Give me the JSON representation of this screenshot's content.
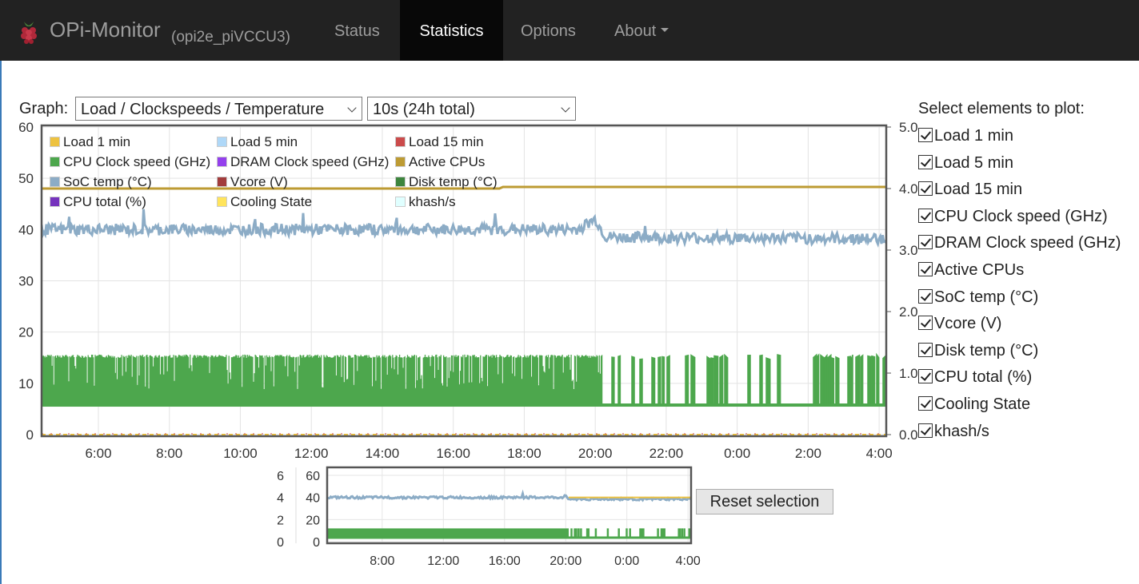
{
  "navbar": {
    "brand_title": "OPi-Monitor",
    "brand_subtitle": "(opi2e_piVCCU3)",
    "items": [
      {
        "label": "Status",
        "active": false
      },
      {
        "label": "Statistics",
        "active": true
      },
      {
        "label": "Options",
        "active": false
      },
      {
        "label": "About",
        "active": false,
        "has_dropdown": true
      }
    ]
  },
  "graph_controls": {
    "label": "Graph:",
    "graph_select": "Load / Clockspeeds / Temperature",
    "interval_select": "10s (24h total)"
  },
  "legend": [
    {
      "label": "Load 1 min",
      "color": "#edc240"
    },
    {
      "label": "Load 5 min",
      "color": "#afd8f8"
    },
    {
      "label": "Load 15 min",
      "color": "#cb4b4b"
    },
    {
      "label": "CPU Clock speed (GHz)",
      "color": "#4da74d"
    },
    {
      "label": "DRAM Clock speed (GHz)",
      "color": "#9440ed"
    },
    {
      "label": "Active CPUs",
      "color": "#bd9b33"
    },
    {
      "label": "SoC temp (°C)",
      "color": "#8cacc6"
    },
    {
      "label": "Vcore (V)",
      "color": "#a23c3c"
    },
    {
      "label": "Disk temp (°C)",
      "color": "#3d853d"
    },
    {
      "label": "CPU total (%)",
      "color": "#7633bd"
    },
    {
      "label": "Cooling State",
      "color": "#ffe45c"
    },
    {
      "label": "khash/s",
      "color": "#e0ffff"
    }
  ],
  "plot_selection": {
    "title": "Select elements to plot:",
    "items": [
      {
        "label": "Load 1 min",
        "checked": true
      },
      {
        "label": "Load 5 min",
        "checked": true
      },
      {
        "label": "Load 15 min",
        "checked": true
      },
      {
        "label": "CPU Clock speed (GHz)",
        "checked": true
      },
      {
        "label": "DRAM Clock speed (GHz)",
        "checked": true
      },
      {
        "label": "Active CPUs",
        "checked": true
      },
      {
        "label": "SoC temp (°C)",
        "checked": true
      },
      {
        "label": "Vcore (V)",
        "checked": true
      },
      {
        "label": "Disk temp (°C)",
        "checked": true
      },
      {
        "label": "CPU total (%)",
        "checked": true
      },
      {
        "label": "Cooling State",
        "checked": true
      },
      {
        "label": "khash/s",
        "checked": true
      }
    ]
  },
  "reset_button": "Reset selection",
  "chart_data": [
    {
      "type": "line",
      "name": "main",
      "y_left_ticks": [
        "0",
        "10",
        "20",
        "30",
        "40",
        "50",
        "60"
      ],
      "y_right_ticks": [
        "0.0",
        "1.0",
        "2.0",
        "3.0",
        "4.0",
        "5.0"
      ],
      "x_ticks": [
        "6:00",
        "8:00",
        "10:00",
        "12:00",
        "14:00",
        "16:00",
        "18:00",
        "20:00",
        "22:00",
        "0:00",
        "2:00",
        "4:00"
      ],
      "ylim_left": [
        0,
        60
      ],
      "ylim_right": [
        0,
        5
      ],
      "grid": true,
      "series": [
        {
          "name": "SoC temp (°C)",
          "color": "#8cacc6",
          "x_hours": [
            4.4,
            19.5,
            20.0,
            20.3,
            28.2
          ],
          "values": [
            40,
            40,
            42,
            38.5,
            38.2
          ]
        },
        {
          "name": "Active CPUs",
          "color": "#bd9b33",
          "x_hours": [
            4.4,
            17.3,
            17.4,
            28.2
          ],
          "values": [
            4,
            4,
            4,
            4
          ]
        },
        {
          "name": "CPU Clock speed (GHz)",
          "color": "#4da74d",
          "x_hours": [
            4.4,
            20.2,
            28.2
          ],
          "values_low": [
            0.48,
            0.48,
            0.48
          ],
          "values_high": [
            1.3,
            1.3,
            1.3
          ]
        }
      ]
    },
    {
      "type": "line",
      "name": "overview",
      "y_left_ticks": [
        "0",
        "2",
        "4",
        "6"
      ],
      "y_right_ticks": [
        "0",
        "20",
        "40",
        "60"
      ],
      "x_ticks": [
        "8:00",
        "12:00",
        "16:00",
        "20:00",
        "0:00",
        "4:00"
      ],
      "ylim_left": [
        0,
        6
      ],
      "ylim_right": [
        0,
        60
      ]
    }
  ]
}
